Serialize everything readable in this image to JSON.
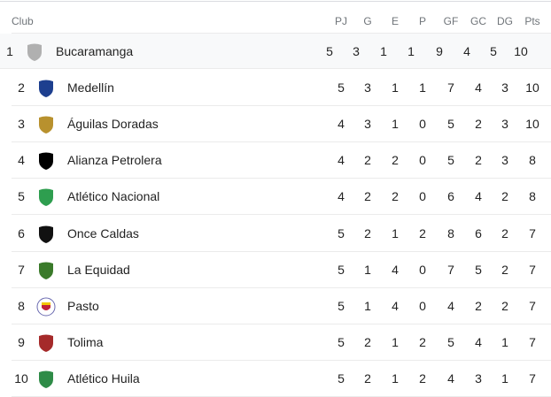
{
  "headers": {
    "club": "Club",
    "cols": [
      "PJ",
      "G",
      "E",
      "P",
      "GF",
      "GC",
      "DG",
      "Pts"
    ]
  },
  "rows": [
    {
      "rank": "1",
      "club": "Bucaramanga",
      "logo": "gray-shield-icon",
      "color": "#b0b0b0",
      "stats": [
        "5",
        "3",
        "1",
        "1",
        "9",
        "4",
        "5",
        "10"
      ]
    },
    {
      "rank": "2",
      "club": "Medellín",
      "logo": "medellin-crest-icon",
      "color": "#1d3f8f",
      "stats": [
        "5",
        "3",
        "1",
        "1",
        "7",
        "4",
        "3",
        "10"
      ]
    },
    {
      "rank": "3",
      "club": "Águilas Doradas",
      "logo": "aguilas-crest-icon",
      "color": "#b8912e",
      "stats": [
        "4",
        "3",
        "1",
        "0",
        "5",
        "2",
        "3",
        "10"
      ]
    },
    {
      "rank": "4",
      "club": "Alianza Petrolera",
      "logo": "black-shield-icon",
      "color": "#000000",
      "stats": [
        "4",
        "2",
        "2",
        "0",
        "5",
        "2",
        "3",
        "8"
      ]
    },
    {
      "rank": "5",
      "club": "Atlético Nacional",
      "logo": "nacional-crest-icon",
      "color": "#2e9e4f",
      "stats": [
        "4",
        "2",
        "2",
        "0",
        "6",
        "4",
        "2",
        "8"
      ]
    },
    {
      "rank": "6",
      "club": "Once Caldas",
      "logo": "black-shield-icon",
      "color": "#111111",
      "stats": [
        "5",
        "2",
        "1",
        "2",
        "8",
        "6",
        "2",
        "7"
      ]
    },
    {
      "rank": "7",
      "club": "La Equidad",
      "logo": "green-shield-icon",
      "color": "#3a7a2a",
      "stats": [
        "5",
        "1",
        "4",
        "0",
        "7",
        "5",
        "2",
        "7"
      ]
    },
    {
      "rank": "8",
      "club": "Pasto",
      "logo": "pasto-crest-icon",
      "color": "#c0203a",
      "stats": [
        "5",
        "1",
        "4",
        "0",
        "4",
        "2",
        "2",
        "7"
      ]
    },
    {
      "rank": "9",
      "club": "Tolima",
      "logo": "tolima-crest-icon",
      "color": "#a52a2a",
      "stats": [
        "5",
        "2",
        "1",
        "2",
        "5",
        "4",
        "1",
        "7"
      ]
    },
    {
      "rank": "10",
      "club": "Atlético Huila",
      "logo": "green-shield-icon",
      "color": "#2e8b47",
      "stats": [
        "5",
        "2",
        "1",
        "2",
        "4",
        "3",
        "1",
        "7"
      ]
    }
  ]
}
